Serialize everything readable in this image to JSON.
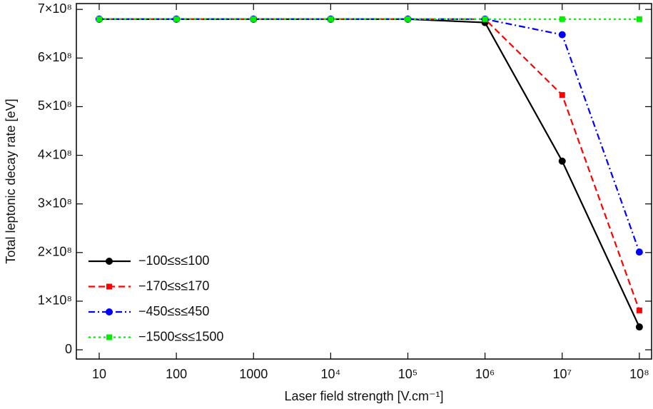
{
  "chart_data": {
    "type": "line",
    "x_label": "Laser field strength [V.cm⁻¹]",
    "y_label": "Total leptonic decay rate [eV]",
    "x": [
      10,
      100,
      1000,
      10000,
      100000,
      1000000,
      10000000,
      100000000
    ],
    "xscale": "log",
    "xlim": [
      5.06,
      144000000
    ],
    "xticks": [
      10,
      100,
      1000,
      {
        "value": 10000,
        "label": "10⁴"
      },
      {
        "value": 100000,
        "label": "10⁵"
      },
      {
        "value": 1000000,
        "label": "10⁶"
      },
      {
        "value": 10000000,
        "label": "10⁷"
      },
      {
        "value": 100000000,
        "label": "10⁸"
      }
    ],
    "ylim": [
      -19000000,
      712000000
    ],
    "yticks": [
      0,
      {
        "value": 100000000,
        "label": "1×10⁸"
      },
      {
        "value": 200000000,
        "label": "2×10⁸"
      },
      {
        "value": 300000000,
        "label": "3×10⁸"
      },
      {
        "value": 400000000,
        "label": "4×10⁸"
      },
      {
        "value": 500000000,
        "label": "5×10⁸"
      },
      {
        "value": 600000000,
        "label": "6×10⁸"
      },
      {
        "value": 700000000,
        "label": "7×10⁸"
      }
    ],
    "legend": "lower left",
    "series": [
      {
        "name": "−100≤s≤100",
        "color": "#000000",
        "dash": "solid",
        "marker": "circle",
        "values": [
          680000000,
          680000000,
          680000000,
          680000000,
          680000000,
          673000000,
          388000000,
          47000000
        ]
      },
      {
        "name": "−170≤s≤170",
        "color": "#ff0000",
        "dash": "dashed",
        "marker": "square",
        "values": [
          680000000,
          680000000,
          680000000,
          680000000,
          680000000,
          680000000,
          524000000,
          81000000
        ]
      },
      {
        "name": "−450≤s≤450",
        "color": "#0000ff",
        "dash": "dashdot",
        "marker": "circle",
        "values": [
          680000000,
          680000000,
          680000000,
          680000000,
          680000000,
          680000000,
          648000000,
          201000000
        ]
      },
      {
        "name": "−1500≤s≤1500",
        "color": "#00ee00",
        "dash": "dotted",
        "marker": "square",
        "values": [
          680000000,
          680000000,
          680000000,
          680000000,
          680000000,
          680000000,
          680000000,
          680000000
        ]
      }
    ]
  }
}
